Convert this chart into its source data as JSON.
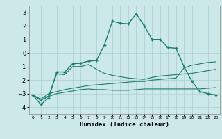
{
  "xlabel": "Humidex (Indice chaleur)",
  "x_values": [
    0,
    1,
    2,
    3,
    4,
    5,
    6,
    7,
    8,
    9,
    10,
    11,
    12,
    13,
    14,
    15,
    16,
    17,
    18,
    19,
    20,
    21,
    22,
    23
  ],
  "main_line": [
    -3.1,
    -3.8,
    -3.3,
    -1.4,
    -1.4,
    -0.8,
    -0.75,
    -0.6,
    -0.55,
    0.6,
    2.35,
    2.2,
    2.15,
    2.9,
    2.0,
    1.0,
    1.0,
    0.4,
    0.35,
    -1.0,
    -2.1,
    -2.85,
    -3.0,
    -3.1
  ],
  "upper_band": [
    -3.1,
    -3.5,
    -3.15,
    -1.55,
    -1.6,
    -1.0,
    -1.0,
    -0.85,
    -1.2,
    -1.5,
    -1.65,
    -1.75,
    -1.85,
    -1.9,
    -1.95,
    -1.8,
    -1.7,
    -1.65,
    -1.6,
    -1.55,
    -1.5,
    -1.4,
    -1.3,
    -1.2
  ],
  "lower_band": [
    -3.1,
    -3.5,
    -3.2,
    -3.0,
    -2.9,
    -2.8,
    -2.7,
    -2.65,
    -2.7,
    -2.7,
    -2.75,
    -2.75,
    -2.75,
    -2.7,
    -2.65,
    -2.65,
    -2.65,
    -2.65,
    -2.65,
    -2.65,
    -2.65,
    -2.65,
    -2.6,
    -2.55
  ],
  "straight_line": [
    -3.1,
    -3.4,
    -3.0,
    -2.85,
    -2.7,
    -2.6,
    -2.5,
    -2.4,
    -2.35,
    -2.3,
    -2.25,
    -2.2,
    -2.15,
    -2.1,
    -2.1,
    -2.0,
    -1.95,
    -1.9,
    -1.85,
    -1.1,
    -0.9,
    -0.8,
    -0.7,
    -0.65
  ],
  "line_color": "#1a7a6e",
  "bg_color": "#cce8e8",
  "grid_color": "#aacece",
  "ylim": [
    -4.5,
    3.5
  ],
  "yticks": [
    -4,
    -3,
    -2,
    -1,
    0,
    1,
    2,
    3
  ],
  "xlim": [
    -0.5,
    23.5
  ]
}
